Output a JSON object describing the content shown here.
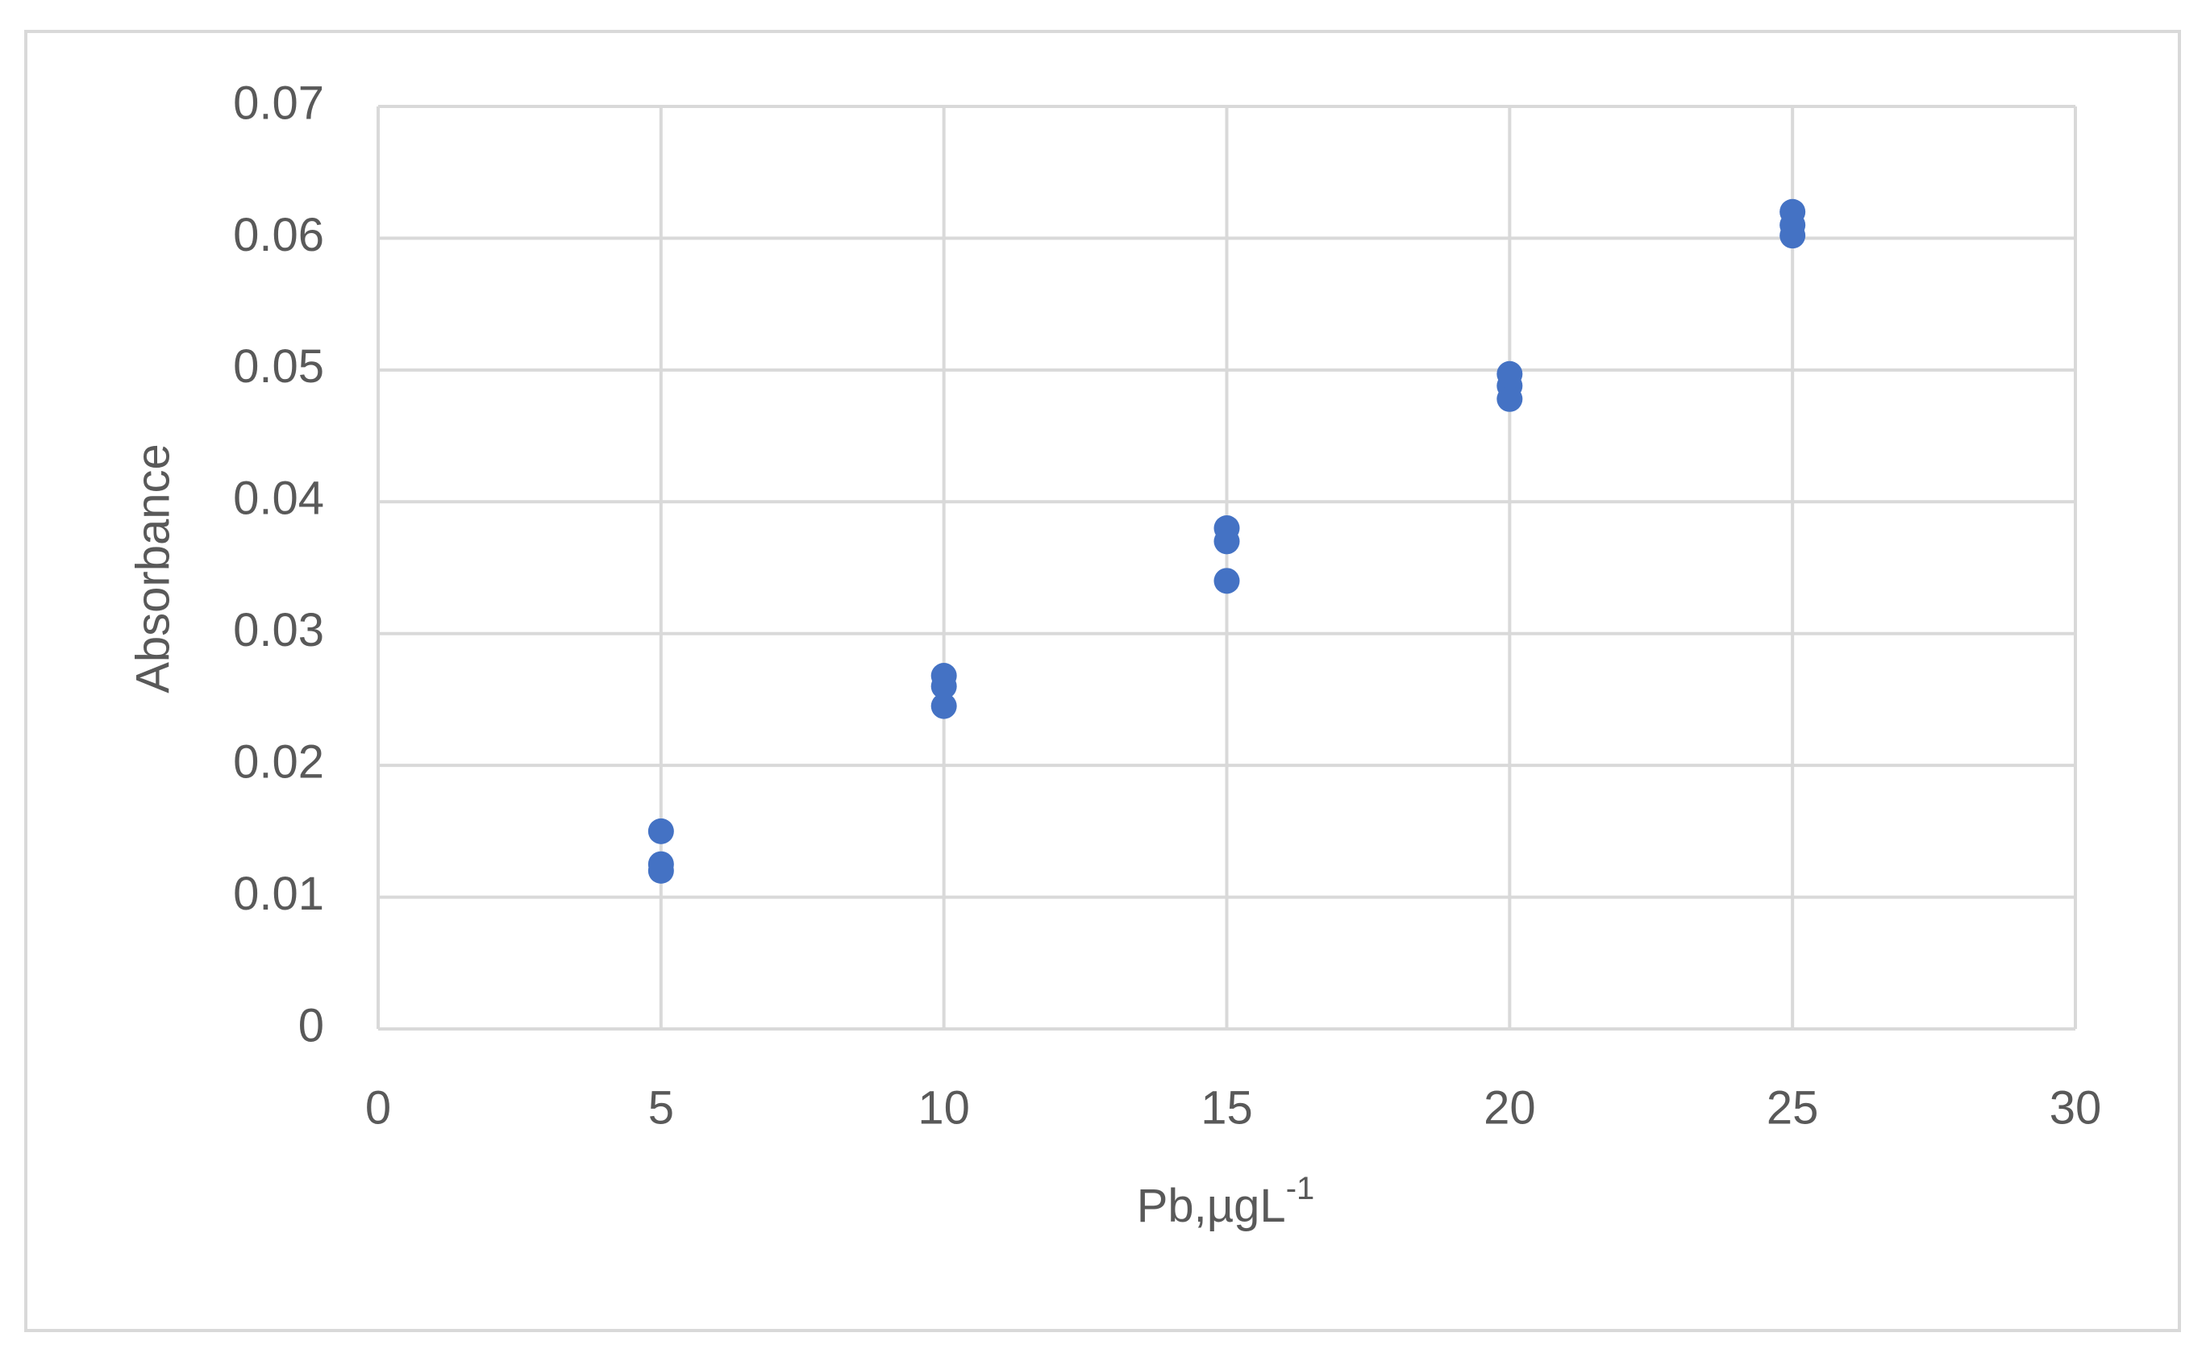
{
  "chart_data": {
    "type": "scatter",
    "x_label": "Pb,µgL",
    "x_label_sup": "-1",
    "y_label": "Absorbance",
    "x": [
      5,
      5,
      5,
      10,
      10,
      10,
      15,
      15,
      15,
      20,
      20,
      20,
      25,
      25,
      25
    ],
    "values": [
      0.015,
      0.0125,
      0.012,
      0.0268,
      0.026,
      0.0245,
      0.038,
      0.037,
      0.034,
      0.0497,
      0.0488,
      0.0478,
      0.062,
      0.061,
      0.0602
    ],
    "color": "#4472c4",
    "xlim": [
      0,
      30
    ],
    "xticks": [
      0,
      5,
      10,
      15,
      20,
      25,
      30
    ],
    "ylim": [
      0,
      0.07
    ],
    "yticks": [
      0,
      0.01,
      0.02,
      0.03,
      0.04,
      0.05,
      0.06,
      0.07
    ],
    "grid": true
  }
}
